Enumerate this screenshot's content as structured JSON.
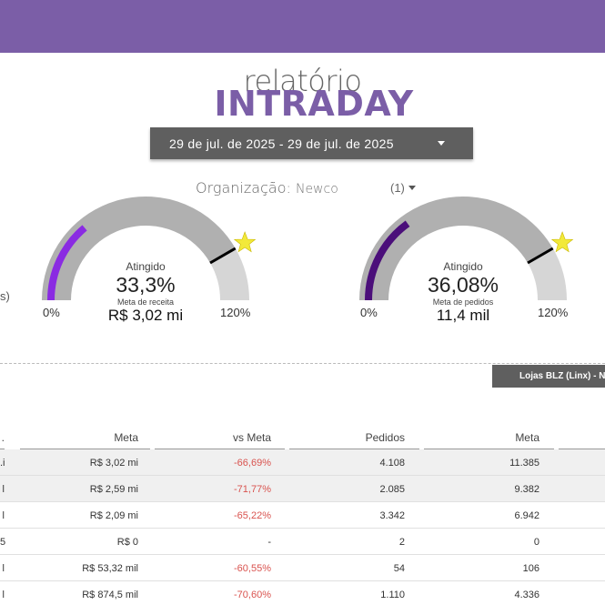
{
  "header": {
    "title_small": "relatório",
    "title_big": "INTRADAY"
  },
  "date_range": {
    "label": "29 de jul. de 2025 - 29 de jul. de 2025"
  },
  "organization": {
    "label": "Organização:",
    "value": "Newco",
    "count": "(1)"
  },
  "left_edge_text": "s)",
  "gauges": [
    {
      "attained_label": "Atingido",
      "percent_text": "33,3%",
      "percent_value": 33.3,
      "target_value": 100,
      "max_value": 120,
      "meta_label": "Meta de receita",
      "meta_value": "R$ 3,02 mi",
      "min_label": "0%",
      "max_label": "120%",
      "fill_color": "#8a2be2"
    },
    {
      "attained_label": "Atingido",
      "percent_text": "36,08%",
      "percent_value": 36.08,
      "target_value": 100,
      "max_value": 120,
      "meta_label": "Meta de pedidos",
      "meta_value": "11,4 mil",
      "min_label": "0%",
      "max_label": "120%",
      "fill_color": "#4b0f7a"
    }
  ],
  "store_tab": "Lojas BLZ (Linx) - N",
  "table": {
    "headers": [
      ".",
      "Meta",
      "vs Meta",
      "Pedidos",
      "Meta"
    ],
    "rows": [
      [
        ".i",
        "R$ 3,02 mi",
        "-66,69%",
        "4.108",
        "11.385"
      ],
      [
        "l",
        "R$ 2,59 mi",
        "-71,77%",
        "2.085",
        "9.382"
      ],
      [
        "l",
        "R$ 2,09 mi",
        "-65,22%",
        "3.342",
        "6.942"
      ],
      [
        "5",
        "R$ 0",
        "-",
        "2",
        "0"
      ],
      [
        "l",
        "R$ 53,32 mil",
        "-60,55%",
        "54",
        "106"
      ],
      [
        "l",
        "R$ 874,5 mil",
        "-70,60%",
        "1.110",
        "4.336"
      ]
    ]
  },
  "colors": {
    "accent": "#7b5ea7",
    "negative": "#d9534f",
    "gauge_track": "#b0b0b0",
    "gauge_over_track": "#d6d6d6",
    "star": "#f2e93a"
  }
}
